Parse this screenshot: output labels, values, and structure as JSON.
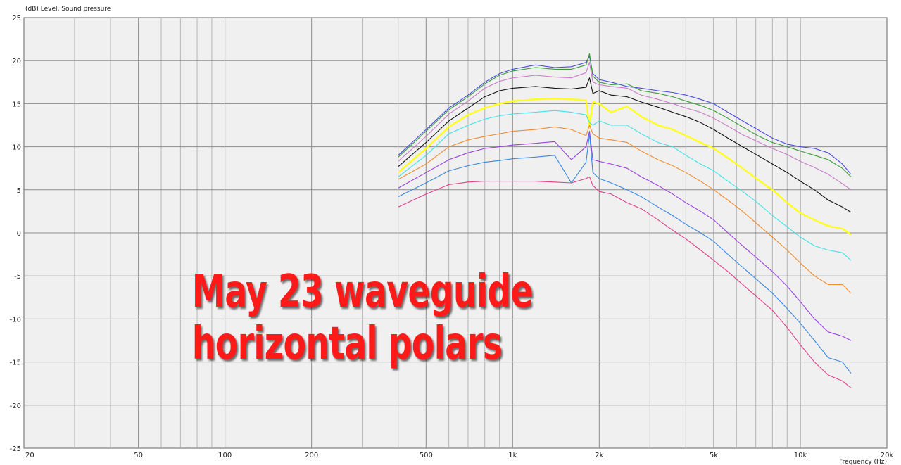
{
  "chart_data": {
    "type": "line",
    "ylabel": "(dB)  Level, Sound pressure",
    "xlabel": "Frequency  (Hz)",
    "xscale": "log",
    "xlim": [
      20,
      20000
    ],
    "ylim": [
      -25,
      25
    ],
    "grid": true,
    "x_ticks": [
      {
        "v": 20,
        "label": "20"
      },
      {
        "v": 50,
        "label": "50"
      },
      {
        "v": 100,
        "label": "100"
      },
      {
        "v": 200,
        "label": "200"
      },
      {
        "v": 500,
        "label": "500"
      },
      {
        "v": 1000,
        "label": "1k"
      },
      {
        "v": 2000,
        "label": "2k"
      },
      {
        "v": 5000,
        "label": "5k"
      },
      {
        "v": 10000,
        "label": "10k"
      },
      {
        "v": 20000,
        "label": "20k"
      }
    ],
    "y_ticks": [
      25,
      20,
      15,
      10,
      5,
      0,
      -5,
      -10,
      -15,
      -20,
      -25
    ],
    "x": [
      400,
      500,
      600,
      700,
      800,
      900,
      1000,
      1200,
      1400,
      1600,
      1800,
      1850,
      1900,
      2000,
      2200,
      2500,
      2800,
      3200,
      3600,
      4000,
      4500,
      5000,
      5600,
      6300,
      7100,
      8000,
      9000,
      10000,
      11200,
      12500,
      14000,
      15000
    ],
    "series": [
      {
        "color": "#4a4ae0",
        "values": [
          9.0,
          12.0,
          14.5,
          16.0,
          17.5,
          18.5,
          19.0,
          19.5,
          19.2,
          19.3,
          19.8,
          20.5,
          18.5,
          17.8,
          17.5,
          17.0,
          16.8,
          16.5,
          16.3,
          16.0,
          15.5,
          15.0,
          14.0,
          13.0,
          12.0,
          11.0,
          10.3,
          10.0,
          9.8,
          9.3,
          8.0,
          6.8
        ]
      },
      {
        "color": "#3a9a3a",
        "values": [
          8.8,
          11.8,
          14.3,
          15.8,
          17.3,
          18.3,
          18.8,
          19.2,
          19.0,
          19.0,
          19.5,
          20.8,
          18.2,
          17.5,
          17.2,
          17.3,
          16.5,
          16.2,
          15.8,
          15.3,
          14.8,
          14.2,
          13.3,
          12.3,
          11.3,
          10.5,
          10.0,
          9.5,
          9.0,
          8.5,
          7.5,
          6.5
        ]
      },
      {
        "color": "#c87cc8",
        "values": [
          8.3,
          11.2,
          13.8,
          15.3,
          16.8,
          17.6,
          18.0,
          18.3,
          18.1,
          18.0,
          18.6,
          19.8,
          17.5,
          17.2,
          17.0,
          16.8,
          16.0,
          15.5,
          15.0,
          14.5,
          14.0,
          13.3,
          12.4,
          11.4,
          10.6,
          9.8,
          9.1,
          8.3,
          7.6,
          6.8,
          5.7,
          5.0
        ]
      },
      {
        "color": "#111111",
        "values": [
          7.7,
          10.5,
          13.0,
          14.5,
          15.8,
          16.5,
          16.8,
          17.0,
          16.8,
          16.7,
          16.9,
          18.0,
          16.2,
          16.5,
          16.0,
          15.8,
          15.2,
          14.6,
          14.0,
          13.5,
          12.8,
          12.0,
          11.0,
          10.0,
          9.0,
          8.0,
          7.0,
          6.0,
          5.0,
          3.8,
          3.0,
          2.4
        ]
      },
      {
        "color": "#ffff22",
        "values": [
          7.0,
          9.8,
          12.3,
          13.7,
          14.5,
          15.0,
          15.3,
          15.5,
          15.6,
          15.5,
          15.4,
          12.3,
          15.2,
          15.0,
          14.0,
          14.7,
          13.5,
          12.5,
          12.0,
          11.3,
          10.5,
          9.8,
          8.7,
          7.5,
          6.2,
          5.0,
          3.5,
          2.3,
          1.5,
          0.8,
          0.5,
          -0.2
        ]
      },
      {
        "color": "#44e0e8",
        "values": [
          6.5,
          9.0,
          11.5,
          12.5,
          13.2,
          13.6,
          13.8,
          14.0,
          14.2,
          14.0,
          13.7,
          12.8,
          12.5,
          13.0,
          12.5,
          12.5,
          11.5,
          10.5,
          10.0,
          9.0,
          8.0,
          7.2,
          6.0,
          4.8,
          3.5,
          2.0,
          0.7,
          -0.5,
          -1.5,
          -2.0,
          -2.3,
          -3.2
        ]
      },
      {
        "color": "#f08c30",
        "values": [
          6.2,
          8.0,
          10.0,
          10.8,
          11.2,
          11.5,
          11.8,
          12.0,
          12.3,
          12.0,
          11.3,
          12.5,
          11.5,
          11.0,
          10.8,
          10.5,
          9.5,
          8.5,
          7.8,
          7.0,
          6.0,
          5.0,
          3.8,
          2.5,
          1.0,
          -0.5,
          -2.0,
          -3.5,
          -5.0,
          -6.0,
          -6.0,
          -7.0
        ]
      },
      {
        "color": "#9a40e0",
        "values": [
          5.2,
          7.0,
          8.5,
          9.3,
          9.8,
          10.0,
          10.2,
          10.4,
          10.6,
          8.5,
          10.0,
          11.8,
          8.5,
          8.3,
          8.0,
          7.5,
          6.5,
          5.5,
          4.5,
          3.5,
          2.5,
          1.5,
          0.0,
          -1.5,
          -3.0,
          -4.5,
          -6.2,
          -8.0,
          -10.0,
          -11.5,
          -12.0,
          -12.5
        ]
      },
      {
        "color": "#3a88e0",
        "values": [
          4.2,
          5.8,
          7.2,
          7.8,
          8.2,
          8.4,
          8.6,
          8.8,
          9.0,
          5.8,
          8.2,
          11.5,
          7.0,
          6.3,
          5.8,
          5.0,
          4.2,
          3.0,
          2.0,
          1.0,
          0.0,
          -1.0,
          -2.5,
          -4.0,
          -5.5,
          -7.0,
          -8.8,
          -10.5,
          -12.5,
          -14.5,
          -15.0,
          -16.3
        ]
      },
      {
        "color": "#e0408a",
        "values": [
          3.0,
          4.5,
          5.6,
          5.9,
          6.0,
          6.0,
          6.0,
          6.0,
          5.9,
          5.8,
          6.3,
          6.5,
          5.5,
          4.8,
          4.5,
          3.5,
          2.8,
          1.5,
          0.3,
          -0.7,
          -2.0,
          -3.2,
          -4.5,
          -6.0,
          -7.5,
          -9.0,
          -11.0,
          -13.0,
          -15.0,
          -16.5,
          -17.2,
          -18.0
        ]
      }
    ]
  },
  "overlay": {
    "line1": "May 23 waveguide",
    "line2": "horizontal polars"
  }
}
